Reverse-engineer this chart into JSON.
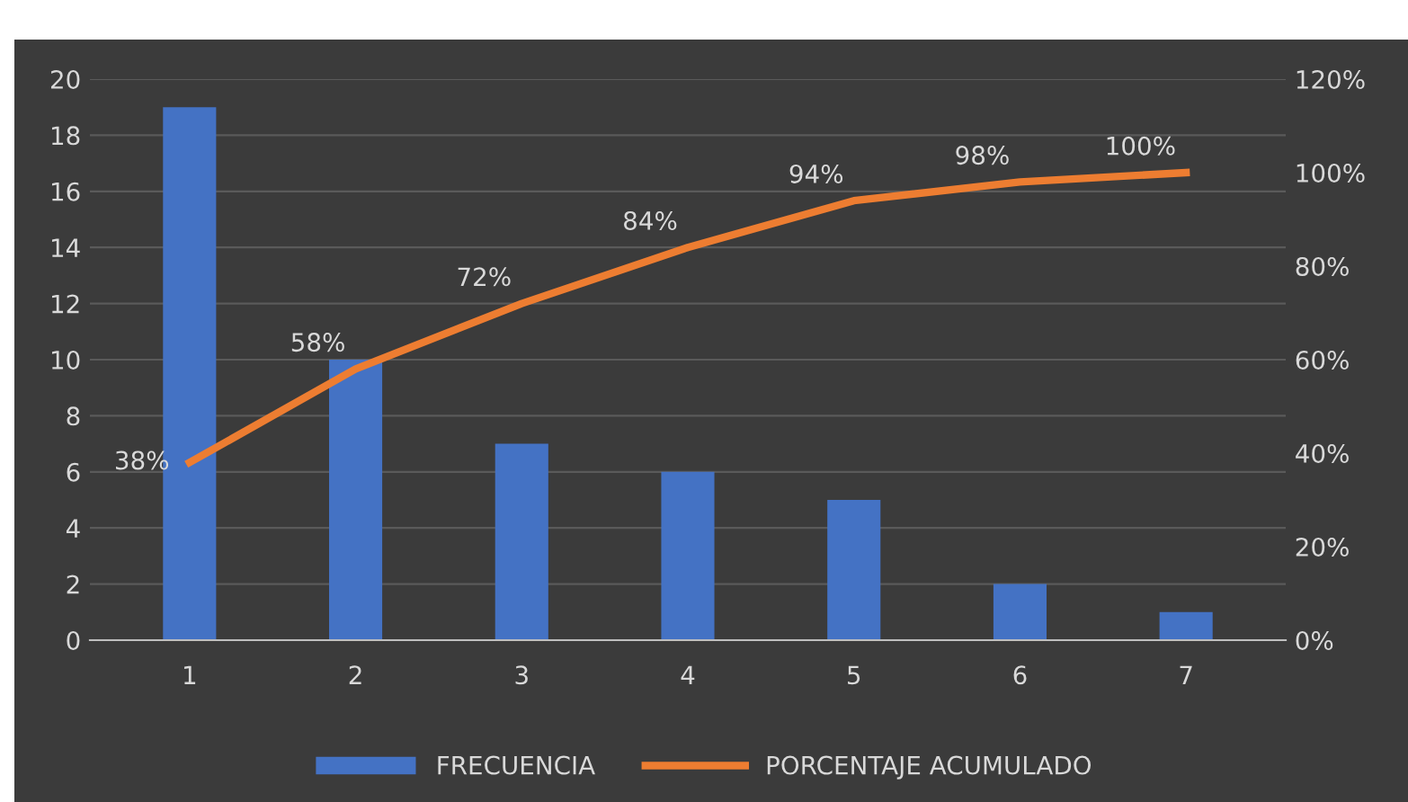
{
  "chart_data": {
    "type": "bar",
    "categories": [
      "1",
      "2",
      "3",
      "4",
      "5",
      "6",
      "7"
    ],
    "series": [
      {
        "name": "FRECUENCIA",
        "color": "#4472c4",
        "values": [
          19,
          10,
          7,
          6,
          5,
          2,
          1
        ]
      },
      {
        "name": "PORCENTAJE ACUMULADO",
        "type": "line",
        "axis": "y2",
        "color": "#ed7d31",
        "values": [
          38,
          58,
          72,
          84,
          94,
          98,
          100
        ],
        "value_labels": [
          "38%",
          "58%",
          "72%",
          "84%",
          "94%",
          "98%",
          "100%"
        ]
      }
    ],
    "ylim": [
      0,
      20
    ],
    "yticks": [
      0,
      2,
      4,
      6,
      8,
      10,
      12,
      14,
      16,
      18,
      20
    ],
    "y2lim": [
      0,
      120
    ],
    "y2ticks": [
      {
        "value": 0,
        "label": "0%"
      },
      {
        "value": 20,
        "label": "20%"
      },
      {
        "value": 40,
        "label": "40%"
      },
      {
        "value": 60,
        "label": "60%"
      },
      {
        "value": 80,
        "label": "80%"
      },
      {
        "value": 100,
        "label": "100%"
      },
      {
        "value": 120,
        "label": "120%"
      }
    ],
    "grid": "y",
    "legend": "bottom",
    "line_style": "solid",
    "marker": "none"
  }
}
